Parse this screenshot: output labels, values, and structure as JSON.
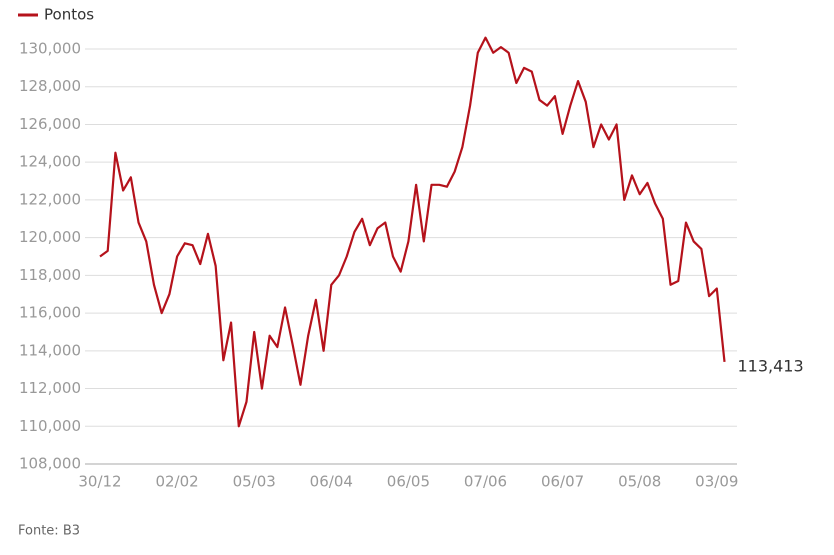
{
  "chart_data": {
    "type": "line",
    "source": "Fonte: B3",
    "categories": [
      "30/12",
      null,
      null,
      null,
      null,
      null,
      null,
      null,
      null,
      null,
      "02/02",
      null,
      null,
      null,
      null,
      null,
      null,
      null,
      null,
      null,
      "05/03",
      null,
      null,
      null,
      null,
      null,
      null,
      null,
      null,
      null,
      "06/04",
      null,
      null,
      null,
      null,
      null,
      null,
      null,
      null,
      null,
      "06/05",
      null,
      null,
      null,
      null,
      null,
      null,
      null,
      null,
      null,
      "07/06",
      null,
      null,
      null,
      null,
      null,
      null,
      null,
      null,
      null,
      "06/07",
      null,
      null,
      null,
      null,
      null,
      null,
      null,
      null,
      null,
      "05/08",
      null,
      null,
      null,
      null,
      null,
      null,
      null,
      null,
      null,
      "03/09",
      null
    ],
    "series": [
      {
        "name": "Pontos",
        "color": "#b5121b",
        "values": [
          119000,
          119300,
          124500,
          122500,
          123200,
          120800,
          119800,
          117500,
          116000,
          117000,
          119000,
          119700,
          119600,
          118600,
          120200,
          118500,
          113500,
          115500,
          110000,
          111300,
          115000,
          112000,
          114800,
          114200,
          116300,
          114300,
          112200,
          114800,
          116700,
          114000,
          117500,
          118000,
          119000,
          120300,
          121000,
          119600,
          120500,
          120800,
          119000,
          118200,
          119800,
          122800,
          119800,
          122800,
          122800,
          122700,
          123500,
          124800,
          127000,
          129800,
          130600,
          129800,
          130100,
          129800,
          128200,
          129000,
          128800,
          127300,
          127000,
          127500,
          125500,
          127000,
          128300,
          127200,
          124800,
          126000,
          125200,
          126000,
          122000,
          123300,
          122300,
          122900,
          121800,
          121000,
          117500,
          117700,
          120800,
          119800,
          119400,
          116900,
          117300,
          113413
        ],
        "value_labels": [
          null,
          null,
          null,
          null,
          null,
          null,
          null,
          null,
          null,
          null,
          null,
          null,
          null,
          null,
          null,
          null,
          null,
          null,
          null,
          null,
          null,
          null,
          null,
          null,
          null,
          null,
          null,
          null,
          null,
          null,
          null,
          null,
          null,
          null,
          null,
          null,
          null,
          null,
          null,
          null,
          null,
          null,
          null,
          null,
          null,
          null,
          null,
          null,
          null,
          null,
          null,
          null,
          null,
          null,
          null,
          null,
          null,
          null,
          null,
          null,
          null,
          null,
          null,
          null,
          null,
          null,
          null,
          null,
          null,
          null,
          null,
          null,
          null,
          null,
          null,
          null,
          null,
          null,
          null,
          null,
          null,
          "113,413"
        ]
      }
    ],
    "ylim": [
      108000,
      130000
    ],
    "yticks": [
      {
        "value": 108000,
        "label": "108,000"
      },
      {
        "value": 110000,
        "label": "110,000"
      },
      {
        "value": 112000,
        "label": "112,000"
      },
      {
        "value": 114000,
        "label": "114,000"
      },
      {
        "value": 116000,
        "label": "116,000"
      },
      {
        "value": 118000,
        "label": "118,000"
      },
      {
        "value": 120000,
        "label": "120,000"
      },
      {
        "value": 122000,
        "label": "122,000"
      },
      {
        "value": 124000,
        "label": "124,000"
      },
      {
        "value": 126000,
        "label": "126,000"
      },
      {
        "value": 128000,
        "label": "128,000"
      },
      {
        "value": 130000,
        "label": "130,000"
      }
    ],
    "grid": true
  }
}
